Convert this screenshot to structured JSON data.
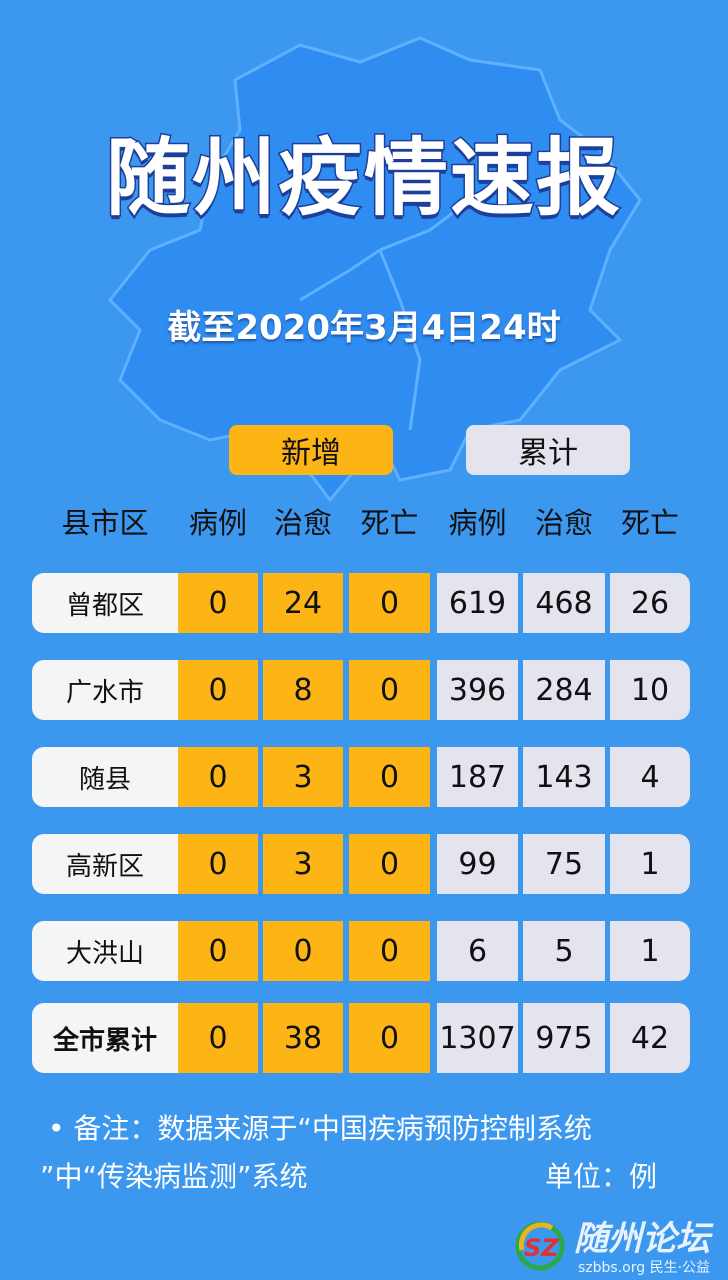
{
  "title": "随州疫情速报",
  "subtitle": "截至2020年3月4日24时",
  "tabs": {
    "new": "新增",
    "cumulative": "累计"
  },
  "headers": [
    "县市区",
    "病例",
    "治愈",
    "死亡",
    "病例",
    "治愈",
    "死亡"
  ],
  "rows": [
    {
      "name": "曾都区",
      "new": [
        "0",
        "24",
        "0"
      ],
      "cum": [
        "619",
        "468",
        "26"
      ]
    },
    {
      "name": "广水市",
      "new": [
        "0",
        "8",
        "0"
      ],
      "cum": [
        "396",
        "284",
        "10"
      ]
    },
    {
      "name": "随县",
      "new": [
        "0",
        "3",
        "0"
      ],
      "cum": [
        "187",
        "143",
        "4"
      ]
    },
    {
      "name": "高新区",
      "new": [
        "0",
        "3",
        "0"
      ],
      "cum": [
        "99",
        "75",
        "1"
      ]
    },
    {
      "name": "大洪山",
      "new": [
        "0",
        "0",
        "0"
      ],
      "cum": [
        "6",
        "5",
        "1"
      ]
    },
    {
      "name": "全市累计",
      "new": [
        "0",
        "38",
        "0"
      ],
      "cum": [
        "1307",
        "975",
        "42"
      ]
    }
  ],
  "note": {
    "line1": "• 备注：数据来源于“中国疾病预防控制系统",
    "line2": "”中“传染病监测”系统",
    "unit": "单位：例"
  },
  "logo": {
    "name": "随州论坛",
    "sub": "szbbs.org 民生·公益"
  },
  "colors": {
    "background": "#3c98ef",
    "new": "#fdb515",
    "cumulative": "#e4e4ee",
    "map": "#2f8cf0"
  }
}
